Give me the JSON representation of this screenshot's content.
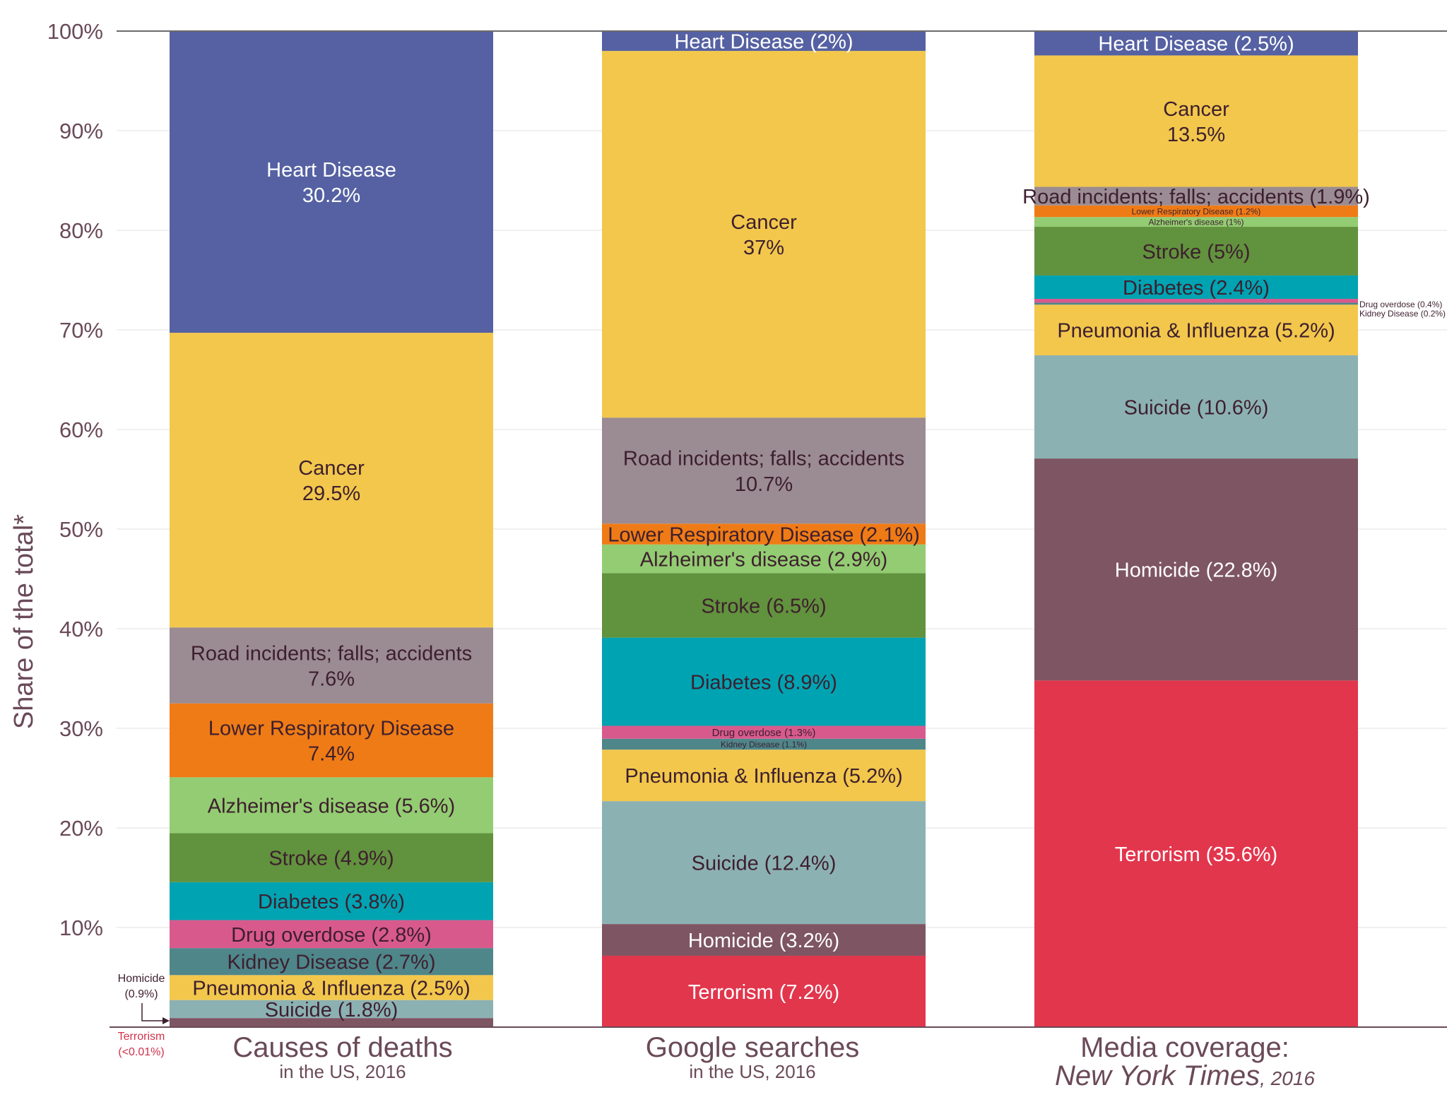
{
  "chart_data": {
    "type": "bar",
    "stacked": true,
    "title": "",
    "xlabel": "",
    "ylabel": "Share of the total*",
    "ylim": [
      0,
      100
    ],
    "yticks": [
      "10%",
      "20%",
      "30%",
      "40%",
      "50%",
      "60%",
      "70%",
      "80%",
      "90%",
      "100%"
    ],
    "grid": true,
    "colors": {
      "Terrorism": "#e2364d",
      "Homicide": "#7e5563",
      "Suicide": "#8cb1b3",
      "Pneumonia & Influenza": "#f2c74c",
      "Kidney Disease": "#4e868a",
      "Drug overdose": "#d85a8d",
      "Diabetes": "#00a3b2",
      "Stroke": "#61923d",
      "Alzheimer's disease": "#93cc72",
      "Lower Respiratory Disease": "#ef7b16",
      "Road incidents; falls; accidents": "#9b8b92",
      "Cancer": "#f2c74c",
      "Heart Disease": "#5561a2"
    },
    "categories": [
      {
        "title": "Causes of deaths",
        "subtitle": "in the US, 2016",
        "subtitle_italic": ""
      },
      {
        "title": "Google searches",
        "subtitle": "in the US, 2016",
        "subtitle_italic": ""
      },
      {
        "title": "Media coverage:",
        "subtitle": ", 2016",
        "subtitle_italic": "New York Times"
      }
    ],
    "series_order_bottom_to_top": [
      "Terrorism",
      "Homicide",
      "Suicide",
      "Pneumonia & Influenza",
      "Kidney Disease",
      "Drug overdose",
      "Diabetes",
      "Stroke",
      "Alzheimer's disease",
      "Lower Respiratory Disease",
      "Road incidents; falls; accidents",
      "Cancer",
      "Heart Disease"
    ],
    "series": [
      {
        "name": "Terrorism",
        "values": [
          0.01,
          7.2,
          35.6
        ],
        "labels": [
          "",
          "Terrorism (7.2%)",
          "Terrorism (35.6%)"
        ]
      },
      {
        "name": "Homicide",
        "values": [
          0.9,
          3.2,
          22.8
        ],
        "labels": [
          "",
          "Homicide (3.2%)",
          "Homicide (22.8%)"
        ]
      },
      {
        "name": "Suicide",
        "values": [
          1.8,
          12.4,
          10.6
        ],
        "labels": [
          "Suicide (1.8%)",
          "Suicide (12.4%)",
          "Suicide (10.6%)"
        ]
      },
      {
        "name": "Pneumonia & Influenza",
        "values": [
          2.5,
          5.2,
          5.2
        ],
        "labels": [
          "Pneumonia & Influenza (2.5%)",
          "Pneumonia & Influenza (5.2%)",
          "Pneumonia & Influenza (5.2%)"
        ]
      },
      {
        "name": "Kidney Disease",
        "values": [
          2.7,
          1.1,
          0.2
        ],
        "labels": [
          "Kidney Disease (2.7%)",
          "Kidney Disease (1.1%)",
          ""
        ]
      },
      {
        "name": "Drug overdose",
        "values": [
          2.8,
          1.3,
          0.4
        ],
        "labels": [
          "Drug overdose (2.8%)",
          "Drug overdose (1.3%)",
          ""
        ]
      },
      {
        "name": "Diabetes",
        "values": [
          3.8,
          8.9,
          2.4
        ],
        "labels": [
          "Diabetes (3.8%)",
          "Diabetes (8.9%)",
          "Diabetes (2.4%)"
        ]
      },
      {
        "name": "Stroke",
        "values": [
          4.9,
          6.5,
          5.0
        ],
        "labels": [
          "Stroke (4.9%)",
          "Stroke (6.5%)",
          "Stroke (5%)"
        ]
      },
      {
        "name": "Alzheimer's disease",
        "values": [
          5.6,
          2.9,
          1.0
        ],
        "labels": [
          "Alzheimer's disease (5.6%)",
          "Alzheimer's disease (2.9%)",
          "Alzheimer's disease (1%)"
        ]
      },
      {
        "name": "Lower Respiratory Disease",
        "values": [
          7.4,
          2.1,
          1.2
        ],
        "labels": [
          "Lower Respiratory Disease|7.4%",
          "Lower Respiratory Disease (2.1%)",
          "Lower Respiratory Disease (1.2%)"
        ]
      },
      {
        "name": "Road incidents; falls; accidents",
        "values": [
          7.6,
          10.7,
          1.9
        ],
        "labels": [
          "Road incidents; falls; accidents|7.6%",
          "Road incidents; falls; accidents|10.7%",
          "Road incidents; falls; accidents (1.9%)"
        ]
      },
      {
        "name": "Cancer",
        "values": [
          29.5,
          37.0,
          13.5
        ],
        "labels": [
          "Cancer|29.5%",
          "Cancer|37%",
          "Cancer|13.5%"
        ]
      },
      {
        "name": "Heart Disease",
        "values": [
          30.2,
          2.0,
          2.5
        ],
        "labels": [
          "Heart Disease|30.2%",
          "Heart Disease (2%)",
          "Heart Disease (2.5%)"
        ]
      }
    ],
    "annotations": [
      {
        "text": "Homicide",
        "text2": "(0.9%)",
        "bar": 0,
        "kind": "arrow-note"
      },
      {
        "text": "Terrorism",
        "text2": "(<0.01%)",
        "bar": 0,
        "kind": "red-note"
      },
      {
        "text": "Drug overdose (0.4%)",
        "bar": 2,
        "kind": "side-note"
      },
      {
        "text": "Kidney Disease (0.2%)",
        "bar": 2,
        "kind": "side-note"
      }
    ]
  }
}
